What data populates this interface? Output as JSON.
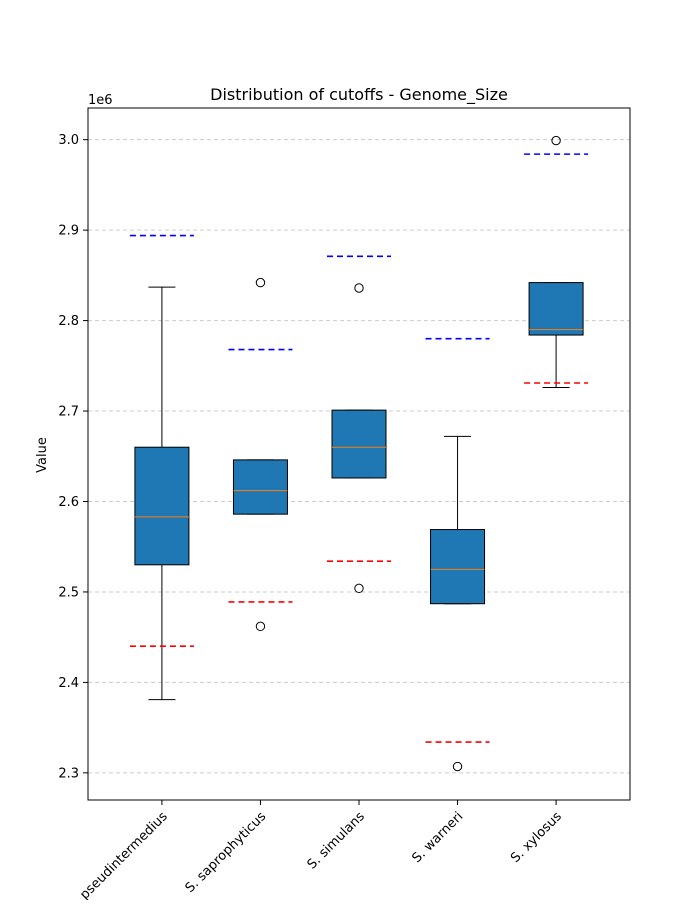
{
  "chart_data": {
    "type": "box",
    "title": "Distribution of cutoffs - Genome_Size",
    "ylabel": "Value",
    "xlabel": "",
    "offset_label": "1e6",
    "ylim": [
      2.27,
      3.035
    ],
    "yticks": [
      2.3,
      2.4,
      2.5,
      2.6,
      2.7,
      2.8,
      2.9,
      3.0
    ],
    "ytick_labels": [
      "2.3",
      "2.4",
      "2.5",
      "2.6",
      "2.7",
      "2.8",
      "2.9",
      "3.0"
    ],
    "grid": true,
    "categories": [
      "S. pseudintermedius",
      "S. saprophyticus",
      "S. simulans",
      "S. warneri",
      "S. xylosus"
    ],
    "boxes": [
      {
        "whisker_low": 2.381,
        "q1": 2.53,
        "median": 2.583,
        "q3": 2.66,
        "whisker_high": 2.837,
        "outliers": [],
        "upper_cutoff": 2.894,
        "lower_cutoff": 2.44
      },
      {
        "whisker_low": 2.586,
        "q1": 2.586,
        "median": 2.612,
        "q3": 2.646,
        "whisker_high": 2.646,
        "outliers": [
          2.842,
          2.462
        ],
        "upper_cutoff": 2.768,
        "lower_cutoff": 2.489
      },
      {
        "whisker_low": 2.626,
        "q1": 2.626,
        "median": 2.66,
        "q3": 2.701,
        "whisker_high": 2.701,
        "outliers": [
          2.836,
          2.504
        ],
        "upper_cutoff": 2.871,
        "lower_cutoff": 2.534
      },
      {
        "whisker_low": 2.487,
        "q1": 2.487,
        "median": 2.525,
        "q3": 2.569,
        "whisker_high": 2.672,
        "outliers": [
          2.307
        ],
        "upper_cutoff": 2.78,
        "lower_cutoff": 2.334
      },
      {
        "whisker_low": 2.726,
        "q1": 2.784,
        "median": 2.79,
        "q3": 2.842,
        "whisker_high": 2.842,
        "outliers": [
          2.999
        ],
        "upper_cutoff": 2.984,
        "lower_cutoff": 2.731
      }
    ],
    "colors": {
      "box_fill": "#1f77b4",
      "median": "#ff7f0e",
      "upper_cutoff": "#0000ff",
      "lower_cutoff": "#ff0000",
      "grid": "#cccccc"
    }
  }
}
